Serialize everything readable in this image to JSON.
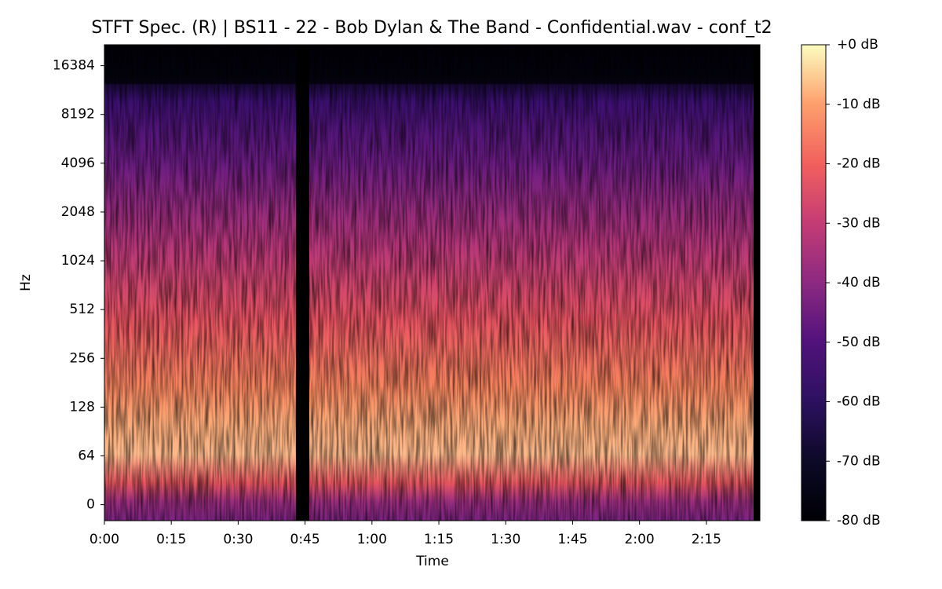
{
  "chart_data": {
    "type": "spectrogram",
    "title": "STFT Spec. (R) | BS11 - 22 - Bob Dylan & The Band - Confidential.wav - conf_t2",
    "xlabel": "Time",
    "ylabel": "Hz",
    "xlim": [
      0,
      147
    ],
    "xticks": [
      {
        "value": 0,
        "label": "0:00"
      },
      {
        "value": 15,
        "label": "0:15"
      },
      {
        "value": 30,
        "label": "0:30"
      },
      {
        "value": 45,
        "label": "0:45"
      },
      {
        "value": 60,
        "label": "1:00"
      },
      {
        "value": 75,
        "label": "1:15"
      },
      {
        "value": 90,
        "label": "1:30"
      },
      {
        "value": 105,
        "label": "1:45"
      },
      {
        "value": 120,
        "label": "2:00"
      },
      {
        "value": 135,
        "label": "2:15"
      }
    ],
    "ylim": [
      -21,
      22050
    ],
    "yscale": "symlog",
    "linthresh": 64,
    "yticks": [
      0,
      64,
      128,
      256,
      512,
      1024,
      2048,
      4096,
      8192,
      16384
    ],
    "colorbar": {
      "colormap": "magma",
      "clim": [
        -80,
        0
      ],
      "ticks": [
        {
          "value": 0,
          "label": "+0 dB"
        },
        {
          "value": -10,
          "label": "-10 dB"
        },
        {
          "value": -20,
          "label": "-20 dB"
        },
        {
          "value": -30,
          "label": "-30 dB"
        },
        {
          "value": -40,
          "label": "-40 dB"
        },
        {
          "value": -50,
          "label": "-50 dB"
        },
        {
          "value": -60,
          "label": "-60 dB"
        },
        {
          "value": -70,
          "label": "-70 dB"
        },
        {
          "value": -80,
          "label": "-80 dB"
        }
      ]
    }
  }
}
